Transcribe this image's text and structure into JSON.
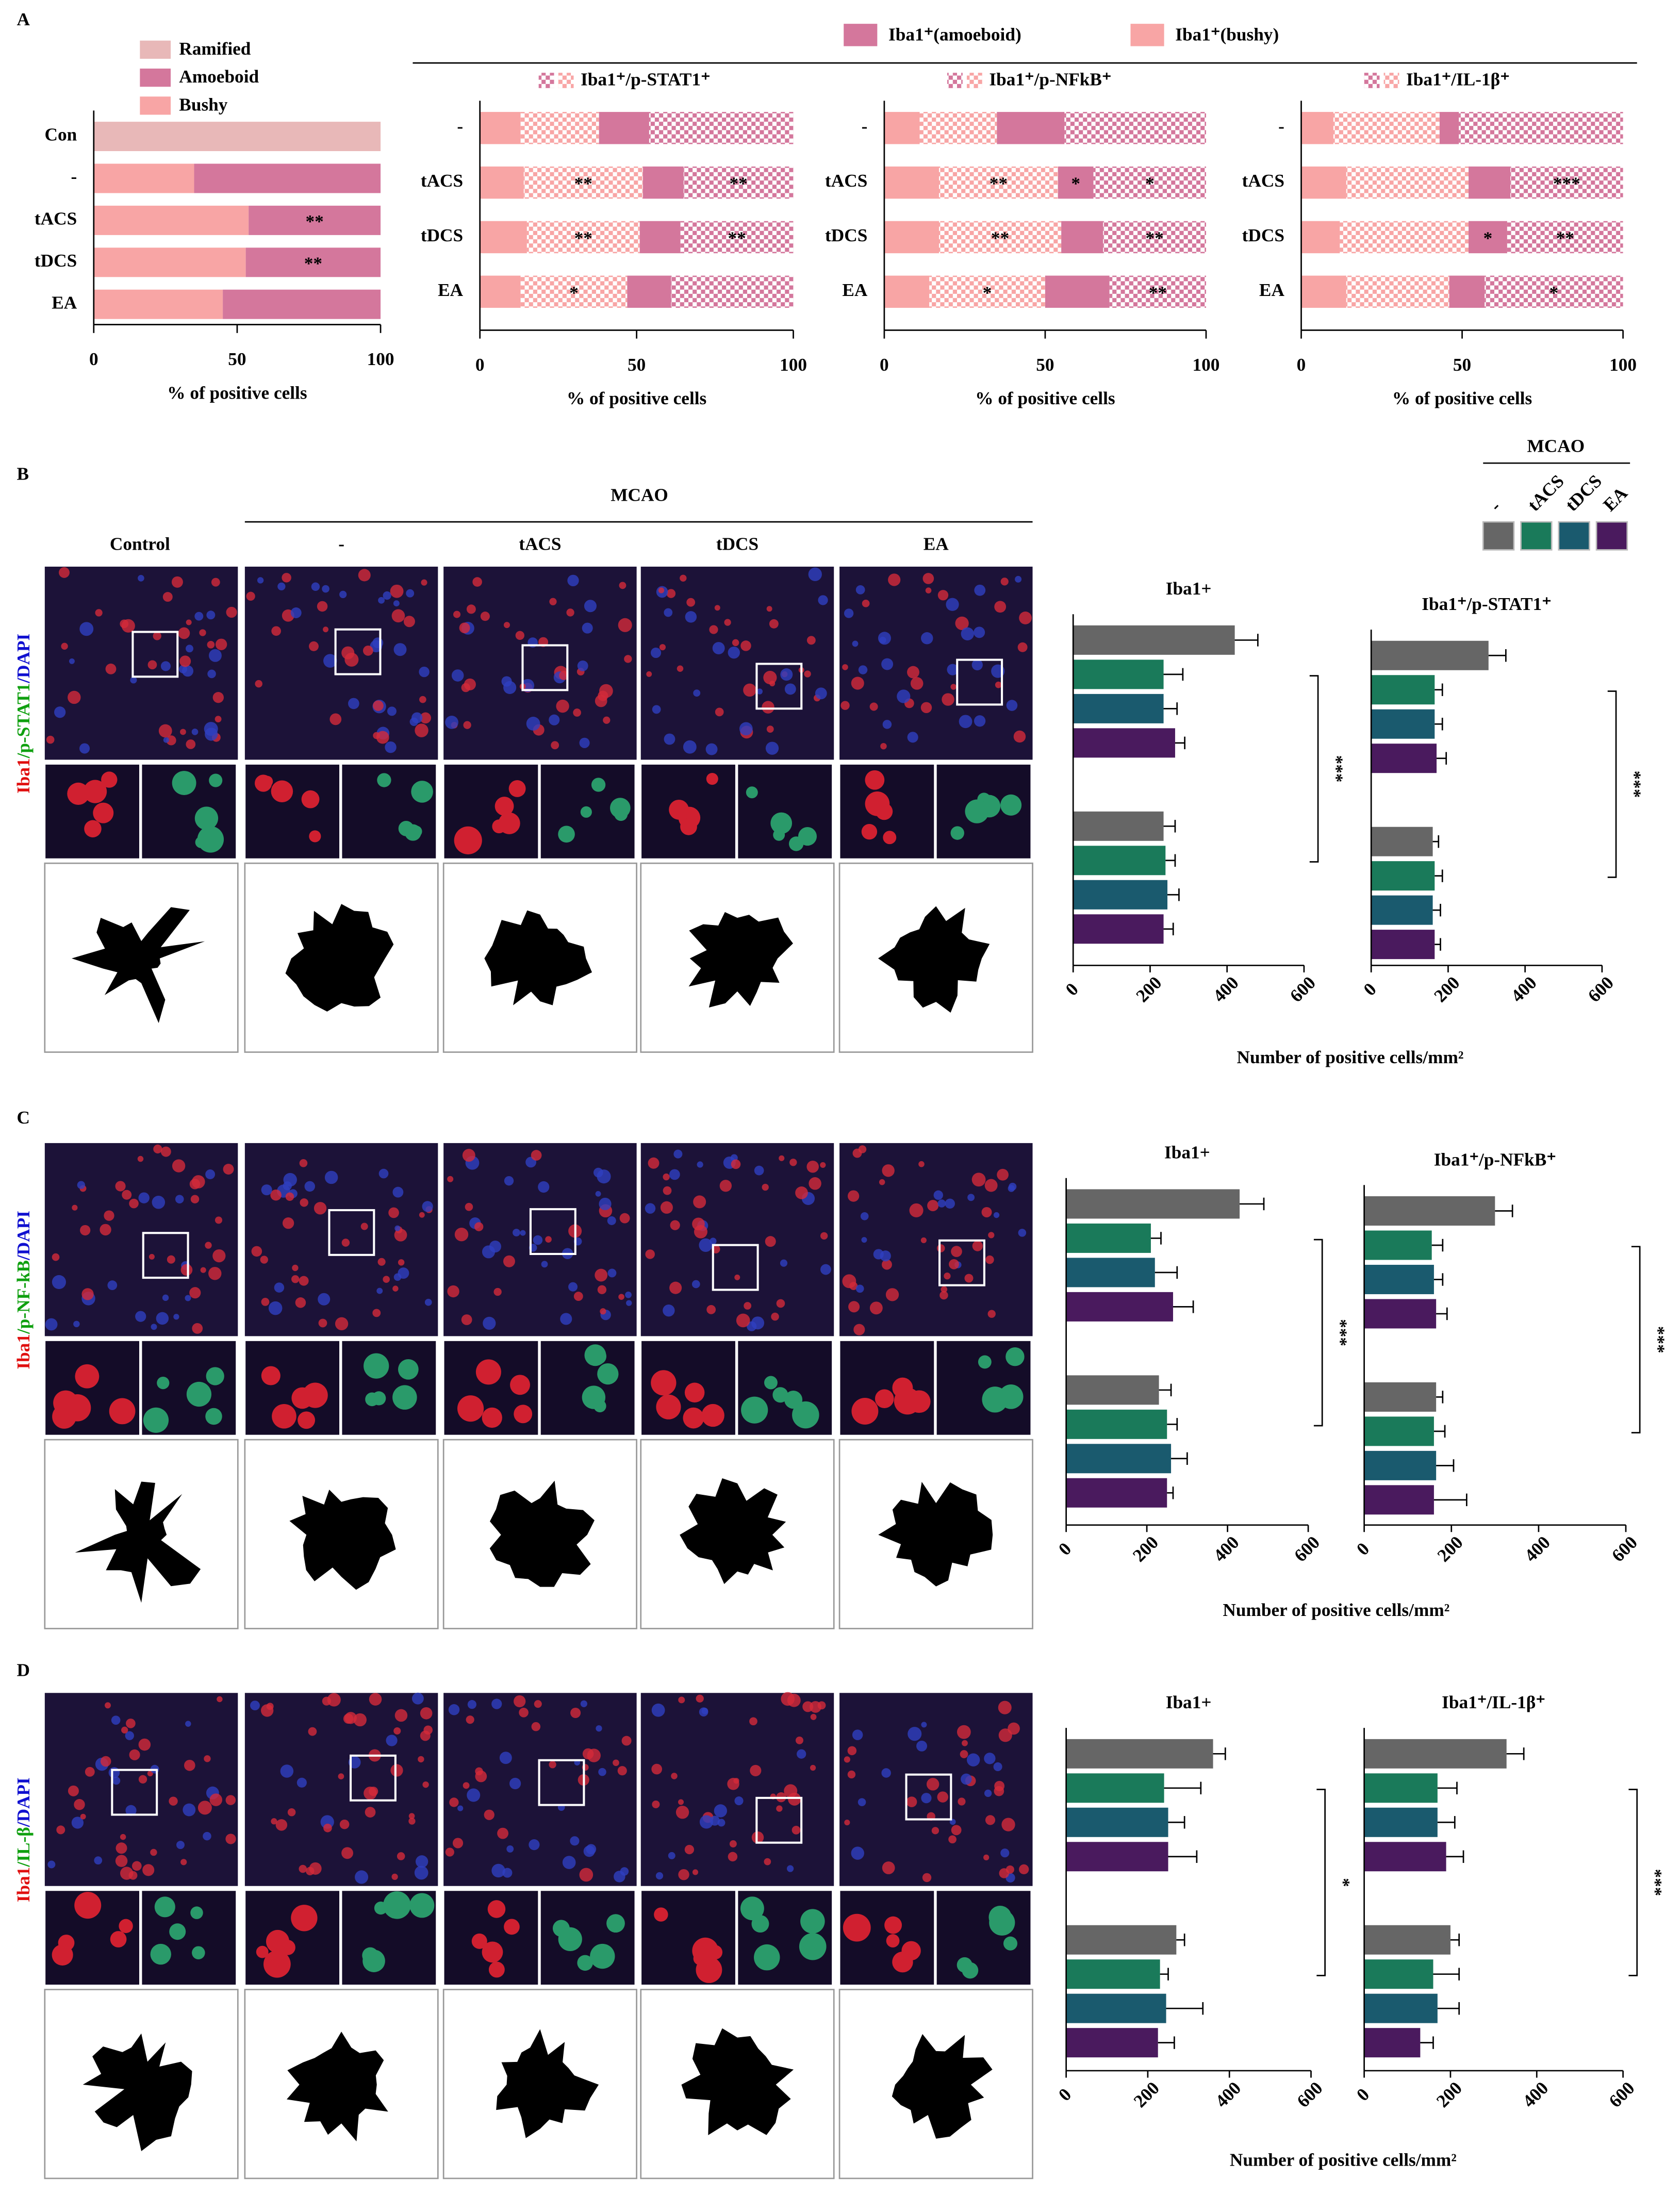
{
  "figure": {
    "panel_labels": [
      "A",
      "B",
      "C",
      "D"
    ],
    "control": "Control",
    "group": "MCAO",
    "treatments": [
      "-",
      "tACS",
      "tDCS",
      "EA"
    ],
    "row_labels": [
      [
        {
          "text": "Iba1",
          "color": "#e01010"
        },
        {
          "text": "/p-STAT1",
          "color": "#10a010"
        },
        {
          "text": "/DAPI",
          "color": "#1010d0"
        }
      ],
      [
        {
          "text": "Iba1",
          "color": "#e01010"
        },
        {
          "text": "/p-NF-kB",
          "color": "#10a010"
        },
        {
          "text": "/DAPI",
          "color": "#1010d0"
        }
      ],
      [
        {
          "text": "Iba1",
          "color": "#e01010"
        },
        {
          "text": "/IL-β",
          "color": "#10a010"
        },
        {
          "text": "/DAPI",
          "color": "#1010d0"
        }
      ]
    ]
  },
  "chart_data": [
    {
      "type": "stacked-bar",
      "categories": [
        "Con",
        "-",
        "tACS",
        "tDCS",
        "EA"
      ],
      "xlim": [
        0,
        100
      ],
      "xticks": [
        0,
        50,
        100
      ],
      "xlabel": "% of positive cells",
      "series": [
        {
          "name": "Bushy",
          "color": "#f8a5a5",
          "values": [
            0,
            35,
            54,
            53,
            45
          ]
        },
        {
          "name": "Amoeboid",
          "color": "#d4779c",
          "values": [
            0,
            65,
            46,
            47,
            55
          ],
          "significance": [
            null,
            null,
            "**",
            "**",
            null
          ]
        },
        {
          "name": "Ramified",
          "color": "#e8b8b8",
          "values": [
            100,
            0,
            0,
            0,
            0
          ]
        }
      ]
    },
    {
      "type": "stacked-bar",
      "legend": "Iba1⁺/p-STAT1⁺",
      "categories": [
        "-",
        "tACS",
        "tDCS",
        "EA"
      ],
      "xlim": [
        0,
        100
      ],
      "xticks": [
        0,
        50,
        100
      ],
      "xlabel": "% of positive cells",
      "series": [
        {
          "name": "Iba1⁺(bushy)",
          "color": "#f8a5a5",
          "values": [
            13,
            14,
            15,
            13
          ]
        },
        {
          "color": "#f8a5a5",
          "pattern": "checker",
          "values": [
            25,
            38,
            36,
            34
          ],
          "significance": [
            null,
            "**",
            "**",
            "*"
          ]
        },
        {
          "name": "Iba1⁺(amoeboid)",
          "color": "#d4779c",
          "values": [
            16,
            13,
            13,
            14
          ]
        },
        {
          "color": "#d4779c",
          "pattern": "checker",
          "values": [
            46,
            35,
            36,
            39
          ],
          "significance": [
            null,
            "**",
            "**",
            null
          ]
        }
      ]
    },
    {
      "type": "stacked-bar",
      "legend": "Iba1⁺/p-NFkB⁺",
      "categories": [
        "-",
        "tACS",
        "tDCS",
        "EA"
      ],
      "xlim": [
        0,
        100
      ],
      "xticks": [
        0,
        50,
        100
      ],
      "xlabel": "% of positive cells",
      "series": [
        {
          "color": "#f8a5a5",
          "values": [
            11,
            17,
            17,
            14
          ]
        },
        {
          "color": "#f8a5a5",
          "pattern": "checker",
          "values": [
            24,
            37,
            38,
            36
          ],
          "significance": [
            null,
            "**",
            "**",
            "*"
          ]
        },
        {
          "color": "#d4779c",
          "values": [
            21,
            11,
            13,
            20
          ],
          "significance": [
            null,
            "*",
            null,
            null
          ]
        },
        {
          "color": "#d4779c",
          "pattern": "checker",
          "values": [
            44,
            35,
            32,
            30
          ],
          "significance": [
            null,
            "*",
            "**",
            "**"
          ]
        }
      ]
    },
    {
      "type": "stacked-bar",
      "legend": "Iba1⁺/IL-1β⁺",
      "categories": [
        "-",
        "tACS",
        "tDCS",
        "EA"
      ],
      "xlim": [
        0,
        100
      ],
      "xticks": [
        0,
        50,
        100
      ],
      "xlabel": "% of positive cells",
      "series": [
        {
          "color": "#f8a5a5",
          "values": [
            10,
            14,
            12,
            14
          ]
        },
        {
          "color": "#f8a5a5",
          "pattern": "checker",
          "values": [
            33,
            38,
            40,
            32
          ]
        },
        {
          "color": "#d4779c",
          "values": [
            6,
            13,
            12,
            11
          ],
          "significance": [
            null,
            null,
            "*",
            null
          ]
        },
        {
          "color": "#d4779c",
          "pattern": "checker",
          "values": [
            51,
            35,
            36,
            43
          ],
          "significance": [
            null,
            "***",
            "**",
            "*"
          ]
        }
      ]
    },
    {
      "type": "bar",
      "title": "Iba1+",
      "legend_title": "MCAO",
      "categories": [
        null,
        null
      ],
      "xlim": [
        0,
        600
      ],
      "xticks": [
        0,
        200,
        400,
        600
      ],
      "xlabel": "Number of positive cells/mm²",
      "significance": "***",
      "series": [
        {
          "name": "-",
          "color": "#666666",
          "values": [
            420,
            235
          ],
          "errors": [
            60,
            30
          ]
        },
        {
          "name": "tACS",
          "color": "#1a7a5a",
          "values": [
            235,
            240
          ],
          "errors": [
            50,
            25
          ]
        },
        {
          "name": "tDCS",
          "color": "#1a5a6e",
          "values": [
            235,
            245
          ],
          "errors": [
            35,
            30
          ]
        },
        {
          "name": "EA",
          "color": "#4a1a5e",
          "values": [
            265,
            235
          ],
          "errors": [
            25,
            25
          ]
        }
      ]
    },
    {
      "type": "bar",
      "title": "Iba1⁺/p-STAT1⁺",
      "categories": [
        null,
        null
      ],
      "xlim": [
        0,
        600
      ],
      "xticks": [
        0,
        200,
        400,
        600
      ],
      "significance": "***",
      "series": [
        {
          "color": "#666666",
          "values": [
            305,
            160
          ],
          "errors": [
            45,
            15
          ]
        },
        {
          "color": "#1a7a5a",
          "values": [
            165,
            165
          ],
          "errors": [
            20,
            20
          ]
        },
        {
          "color": "#1a5a6e",
          "values": [
            165,
            160
          ],
          "errors": [
            20,
            20
          ]
        },
        {
          "color": "#4a1a5e",
          "values": [
            170,
            165
          ],
          "errors": [
            25,
            15
          ]
        }
      ]
    },
    {
      "type": "bar",
      "title": "Iba1+",
      "categories": [
        null,
        null
      ],
      "xlim": [
        0,
        600
      ],
      "xticks": [
        0,
        200,
        400,
        600
      ],
      "xlabel": "Number of positive cells/mm²",
      "significance": "***",
      "series": [
        {
          "color": "#666666",
          "values": [
            430,
            230
          ],
          "errors": [
            60,
            30
          ]
        },
        {
          "color": "#1a7a5a",
          "values": [
            210,
            250
          ],
          "errors": [
            25,
            25
          ]
        },
        {
          "color": "#1a5a6e",
          "values": [
            220,
            260
          ],
          "errors": [
            55,
            40
          ]
        },
        {
          "color": "#4a1a5e",
          "values": [
            265,
            250
          ],
          "errors": [
            50,
            15
          ]
        }
      ]
    },
    {
      "type": "bar",
      "title": "Iba1⁺/p-NFkB⁺",
      "categories": [
        null,
        null
      ],
      "xlim": [
        0,
        600
      ],
      "xticks": [
        0,
        200,
        400,
        600
      ],
      "significance": "***",
      "series": [
        {
          "color": "#666666",
          "values": [
            300,
            165
          ],
          "errors": [
            40,
            15
          ]
        },
        {
          "color": "#1a7a5a",
          "values": [
            155,
            160
          ],
          "errors": [
            25,
            25
          ]
        },
        {
          "color": "#1a5a6e",
          "values": [
            160,
            165
          ],
          "errors": [
            20,
            40
          ]
        },
        {
          "color": "#4a1a5e",
          "values": [
            165,
            160
          ],
          "errors": [
            25,
            75
          ]
        }
      ]
    },
    {
      "type": "bar",
      "title": "Iba1+",
      "categories": [
        null,
        null
      ],
      "xlim": [
        0,
        600
      ],
      "xticks": [
        0,
        200,
        400,
        600
      ],
      "xlabel": "Number of positive cells/mm²",
      "significance": "*",
      "series": [
        {
          "color": "#666666",
          "values": [
            360,
            270
          ],
          "errors": [
            30,
            20
          ]
        },
        {
          "color": "#1a7a5a",
          "values": [
            240,
            230
          ],
          "errors": [
            90,
            20
          ]
        },
        {
          "color": "#1a5a6e",
          "values": [
            250,
            245
          ],
          "errors": [
            40,
            90
          ]
        },
        {
          "color": "#4a1a5e",
          "values": [
            250,
            225
          ],
          "errors": [
            70,
            40
          ]
        }
      ]
    },
    {
      "type": "bar",
      "title": "Iba1⁺/IL-1β⁺",
      "categories": [
        null,
        null
      ],
      "xlim": [
        0,
        600
      ],
      "xticks": [
        0,
        200,
        400,
        600
      ],
      "significance": "***",
      "series": [
        {
          "color": "#666666",
          "values": [
            330,
            200
          ],
          "errors": [
            40,
            20
          ]
        },
        {
          "color": "#1a7a5a",
          "values": [
            170,
            160
          ],
          "errors": [
            45,
            60
          ]
        },
        {
          "color": "#1a5a6e",
          "values": [
            170,
            170
          ],
          "errors": [
            40,
            50
          ]
        },
        {
          "color": "#4a1a5e",
          "values": [
            190,
            130
          ],
          "errors": [
            40,
            30
          ]
        }
      ]
    }
  ]
}
